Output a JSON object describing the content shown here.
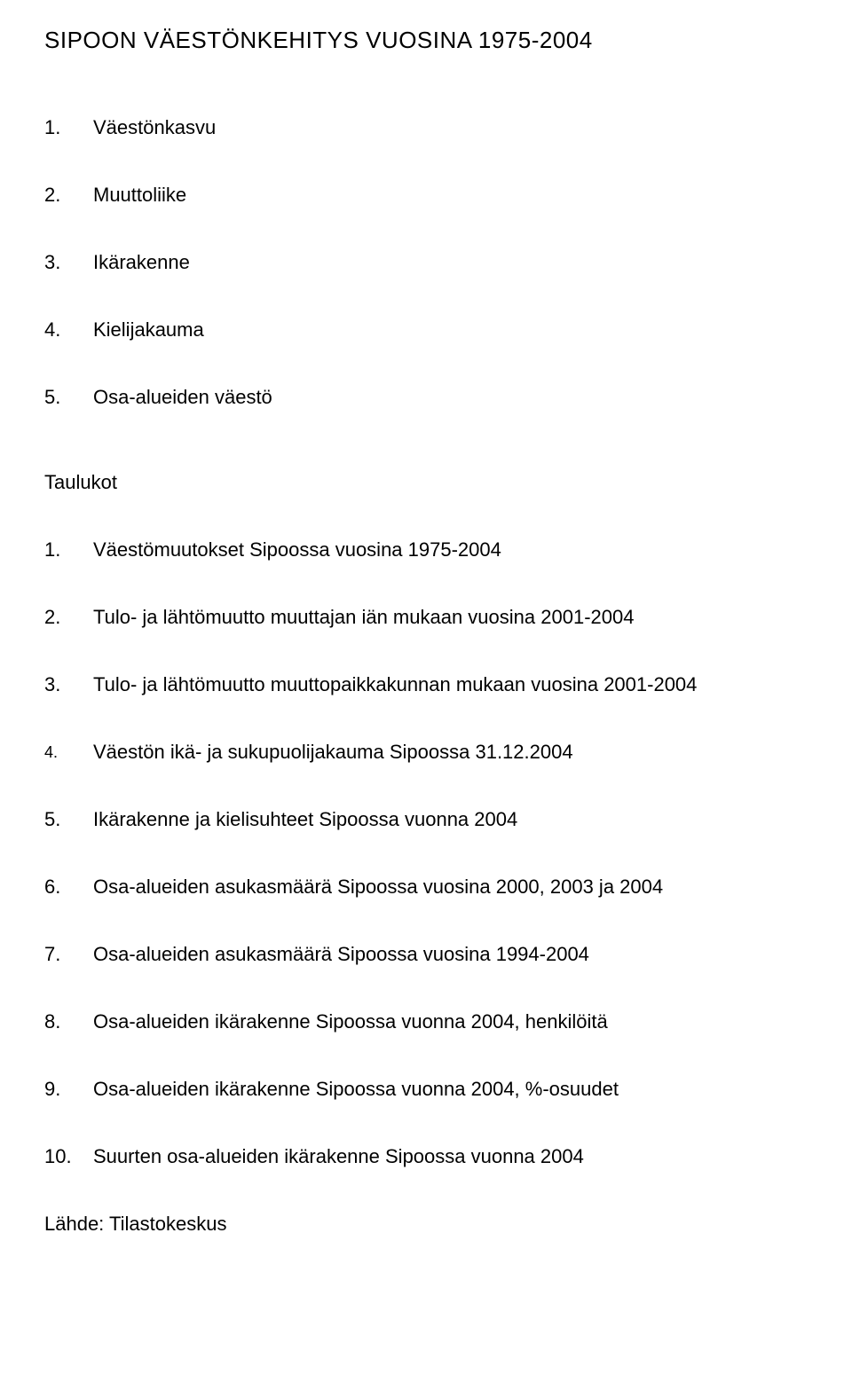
{
  "title": "SIPOON VÄESTÖNKEHITYS VUOSINA 1975-2004",
  "sections": [
    {
      "num": "1.",
      "label": "Väestönkasvu"
    },
    {
      "num": "2.",
      "label": "Muuttoliike"
    },
    {
      "num": "3.",
      "label": "Ikärakenne"
    },
    {
      "num": "4.",
      "label": "Kielijakauma"
    },
    {
      "num": "5.",
      "label": "Osa-alueiden väestö"
    }
  ],
  "tables_heading": "Taulukot",
  "tables": [
    {
      "num": "1.",
      "label": "Väestömuutokset Sipoossa vuosina 1975-2004",
      "small": false
    },
    {
      "num": "2.",
      "label": "Tulo- ja lähtömuutto muuttajan iän mukaan vuosina 2001-2004",
      "small": false
    },
    {
      "num": "3.",
      "label": "Tulo- ja lähtömuutto muuttopaikkakunnan mukaan vuosina 2001-2004",
      "small": false
    },
    {
      "num": "4.",
      "label": "Väestön ikä- ja sukupuolijakauma Sipoossa 31.12.2004",
      "small": true
    },
    {
      "num": "5.",
      "label": "Ikärakenne ja kielisuhteet Sipoossa vuonna 2004",
      "small": false
    },
    {
      "num": "6.",
      "label": "Osa-alueiden asukasmäärä Sipoossa vuosina 2000, 2003 ja 2004",
      "small": false
    },
    {
      "num": "7.",
      "label": "Osa-alueiden asukasmäärä Sipoossa vuosina 1994-2004",
      "small": false
    },
    {
      "num": "8.",
      "label": "Osa-alueiden ikärakenne Sipoossa vuonna 2004, henkilöitä",
      "small": false
    },
    {
      "num": "9.",
      "label": "Osa-alueiden ikärakenne Sipoossa vuonna 2004, %-osuudet",
      "small": false
    },
    {
      "num": "10.",
      "label": "Suurten osa-alueiden ikärakenne Sipoossa vuonna 2004",
      "small": false
    }
  ],
  "source": "Lähde: Tilastokeskus"
}
